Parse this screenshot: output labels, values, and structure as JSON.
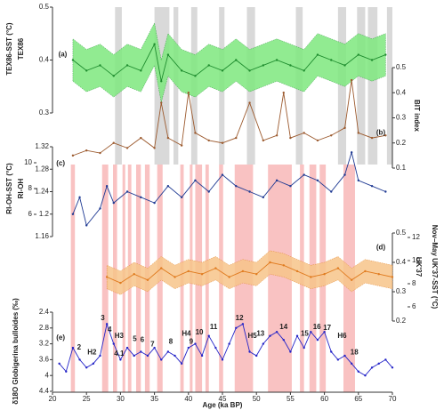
{
  "chart_data": {
    "type": "stacked-line",
    "xlabel": "Age (ka BP)",
    "xlim": [
      20,
      70
    ],
    "xticks": [
      20,
      25,
      30,
      35,
      40,
      45,
      50,
      55,
      60,
      65,
      70
    ],
    "gray_bands": [
      [
        29.2,
        30.2
      ],
      [
        35,
        37.2
      ],
      [
        37.8,
        38.5
      ],
      [
        40.4,
        41.3
      ],
      [
        44.5,
        45.3
      ],
      [
        48.6,
        49.8
      ],
      [
        55.8,
        56.8
      ],
      [
        62,
        63.2
      ],
      [
        64.8,
        66
      ],
      [
        66.4,
        67.8
      ],
      [
        69.2,
        70
      ]
    ],
    "gray_color": "#d9d9d9",
    "pink_bands": [
      [
        22.7,
        23.3
      ],
      [
        27.3,
        28.2
      ],
      [
        28.9,
        29.5
      ],
      [
        30.3,
        30.7
      ],
      [
        31.1,
        31.6
      ],
      [
        32.3,
        33
      ],
      [
        33.6,
        34.3
      ],
      [
        35.4,
        36.2
      ],
      [
        38.8,
        39.3
      ],
      [
        40.2,
        40.6
      ],
      [
        41,
        42
      ],
      [
        42.5,
        43
      ],
      [
        44.5,
        45.1
      ],
      [
        46.8,
        49.5
      ],
      [
        51.7,
        55.2
      ],
      [
        56.4,
        57
      ],
      [
        57.8,
        58.8
      ],
      [
        59.3,
        60.2
      ],
      [
        62.8,
        64.5
      ]
    ],
    "pink_color": "#f9c2c2",
    "panels": [
      {
        "ylabel": "TEX86",
        "ylabel2": "TEX86-SST (°C)",
        "side": "left",
        "ylim": [
          0.3,
          0.5
        ],
        "yticks": [
          0.3,
          0.4,
          0.5
        ],
        "color": "#1e8c2e",
        "band_color": "#7ee87e",
        "tag": "(a)",
        "tag_x": 21.5,
        "tag_y": 0.41,
        "x": [
          23,
          25,
          27,
          29,
          31,
          33,
          35,
          36,
          37,
          39,
          41,
          43,
          45,
          47,
          49,
          51,
          53,
          55,
          57,
          59,
          61,
          63,
          65,
          67,
          69
        ],
        "values": [
          0.4,
          0.38,
          0.39,
          0.37,
          0.39,
          0.38,
          0.43,
          0.36,
          0.41,
          0.38,
          0.37,
          0.39,
          0.38,
          0.4,
          0.38,
          0.39,
          0.4,
          0.39,
          0.38,
          0.41,
          0.4,
          0.39,
          0.41,
          0.4,
          0.41
        ],
        "lower": [
          0.36,
          0.34,
          0.35,
          0.33,
          0.35,
          0.34,
          0.39,
          0.32,
          0.37,
          0.34,
          0.33,
          0.35,
          0.34,
          0.36,
          0.34,
          0.35,
          0.36,
          0.35,
          0.34,
          0.37,
          0.36,
          0.35,
          0.37,
          0.36,
          0.37
        ],
        "upper": [
          0.44,
          0.42,
          0.43,
          0.41,
          0.43,
          0.42,
          0.47,
          0.4,
          0.45,
          0.42,
          0.41,
          0.43,
          0.42,
          0.44,
          0.42,
          0.43,
          0.44,
          0.43,
          0.42,
          0.45,
          0.44,
          0.43,
          0.45,
          0.44,
          0.45
        ]
      },
      {
        "ylabel": "BIT index",
        "side": "right",
        "ylim": [
          0.1,
          0.5
        ],
        "yticks": [
          0.1,
          0.2,
          0.3,
          0.4,
          0.5
        ],
        "color": "#9c5a2e",
        "tag": "(b)",
        "tag_x": 68.3,
        "tag_y": 0.24,
        "x": [
          23,
          25,
          27,
          29,
          31,
          33,
          35,
          36,
          37,
          39,
          40,
          41,
          43,
          45,
          47,
          49,
          51,
          53,
          54,
          55,
          57,
          59,
          61,
          63,
          64,
          65,
          67,
          69
        ],
        "values": [
          0.15,
          0.17,
          0.16,
          0.2,
          0.18,
          0.22,
          0.18,
          0.36,
          0.22,
          0.19,
          0.4,
          0.24,
          0.21,
          0.2,
          0.22,
          0.36,
          0.21,
          0.23,
          0.4,
          0.22,
          0.24,
          0.21,
          0.23,
          0.26,
          0.45,
          0.24,
          0.22,
          0.23
        ]
      },
      {
        "ylabel": "RI-OH",
        "ylabel2": "RI-OH-SST (°C)",
        "side": "left",
        "ylim": [
          1.16,
          1.32
        ],
        "yticks": [
          1.16,
          1.2,
          1.24,
          1.28,
          1.32
        ],
        "y2lim": [
          4,
          12
        ],
        "y2ticks": [
          6,
          8,
          10
        ],
        "color": "#1f3a93",
        "tag": "(c)",
        "tag_x": 21.2,
        "tag_y": 1.29,
        "x": [
          23,
          24,
          25,
          27,
          28,
          29,
          31,
          33,
          35,
          37,
          39,
          41,
          43,
          45,
          47,
          49,
          51,
          53,
          55,
          57,
          59,
          61,
          63,
          64,
          65,
          67,
          69
        ],
        "values": [
          1.2,
          1.23,
          1.18,
          1.21,
          1.25,
          1.22,
          1.24,
          1.23,
          1.22,
          1.25,
          1.23,
          1.26,
          1.24,
          1.27,
          1.25,
          1.24,
          1.23,
          1.26,
          1.25,
          1.27,
          1.26,
          1.24,
          1.27,
          1.31,
          1.26,
          1.25,
          1.24
        ]
      },
      {
        "ylabel": "UK'37",
        "ylabel2": "Nov–May UK'37-SST (°C)",
        "side": "right",
        "ylim": [
          0.2,
          0.5
        ],
        "yticks": [
          0.2,
          0.3,
          0.4,
          0.5
        ],
        "y2lim": [
          4,
          14
        ],
        "y2ticks": [
          6,
          8,
          10,
          12
        ],
        "color": "#e07b1f",
        "band_color": "#f7c48a",
        "tag": "(d)",
        "tag_x": 68.3,
        "tag_y": 0.45,
        "x": [
          28,
          30,
          32,
          34,
          36,
          38,
          40,
          42,
          44,
          46,
          48,
          50,
          52,
          54,
          56,
          58,
          60,
          62,
          64,
          66,
          68,
          70
        ],
        "values": [
          0.35,
          0.33,
          0.36,
          0.34,
          0.38,
          0.35,
          0.37,
          0.36,
          0.38,
          0.35,
          0.37,
          0.36,
          0.4,
          0.39,
          0.37,
          0.35,
          0.36,
          0.38,
          0.34,
          0.37,
          0.36,
          0.35
        ],
        "lower": [
          0.31,
          0.29,
          0.32,
          0.3,
          0.34,
          0.31,
          0.33,
          0.32,
          0.34,
          0.31,
          0.33,
          0.32,
          0.36,
          0.35,
          0.33,
          0.31,
          0.32,
          0.34,
          0.3,
          0.33,
          0.32,
          0.31
        ],
        "upper": [
          0.39,
          0.37,
          0.4,
          0.38,
          0.42,
          0.39,
          0.41,
          0.4,
          0.42,
          0.39,
          0.41,
          0.4,
          0.44,
          0.43,
          0.41,
          0.39,
          0.4,
          0.42,
          0.38,
          0.41,
          0.4,
          0.39
        ]
      },
      {
        "ylabel": "δ18O Globigerina bulloides (‰)",
        "side": "left",
        "ylim": [
          2.4,
          4.4
        ],
        "yticks": [
          2.4,
          2.8,
          3.2,
          3.6,
          4,
          4.4
        ],
        "y_inverted": true,
        "color": "#2424c8",
        "tag": "(e)",
        "tag_x": 21.2,
        "tag_y": 3.05,
        "x": [
          21,
          22,
          23,
          24,
          25,
          26,
          27,
          28,
          29,
          30,
          31,
          32,
          33,
          34,
          35,
          36,
          37,
          38,
          39,
          40,
          41,
          42,
          43,
          44,
          45,
          46,
          47,
          48,
          49,
          50,
          51,
          52,
          53,
          54,
          55,
          56,
          57,
          58,
          59,
          60,
          61,
          62,
          63,
          64,
          65,
          66,
          67,
          68,
          69,
          70
        ],
        "values": [
          3.7,
          3.9,
          3.3,
          3.6,
          3.8,
          3.7,
          3.5,
          2.7,
          3.2,
          3.6,
          3.3,
          3.5,
          3.4,
          3.5,
          3.3,
          3.6,
          3.4,
          3.5,
          3.7,
          3.3,
          3.2,
          3.5,
          3.0,
          3.3,
          3.6,
          3.2,
          2.8,
          2.7,
          3.4,
          3.5,
          3.2,
          3.0,
          2.9,
          3.1,
          3.4,
          3.0,
          3.3,
          2.9,
          3.1,
          2.9,
          3.4,
          3.6,
          3.5,
          3.7,
          3.9,
          4.0,
          3.8,
          3.7,
          3.6,
          3.8
        ]
      }
    ],
    "events": [
      {
        "label": "2",
        "x": 23.9,
        "y": 3.3,
        "color": "#cc1111"
      },
      {
        "label": "H2",
        "x": 25.8,
        "y": 3.42,
        "color": "#1f1f9a"
      },
      {
        "label": "3",
        "x": 27.4,
        "y": 2.55,
        "color": "#cc1111"
      },
      {
        "label": "4",
        "x": 28.4,
        "y": 2.85,
        "color": "#cc1111"
      },
      {
        "label": "H3",
        "x": 29.8,
        "y": 3.0,
        "color": "#1f1f9a"
      },
      {
        "label": "4.1",
        "x": 29.8,
        "y": 3.45,
        "color": "#cc1111"
      },
      {
        "label": "5",
        "x": 32.1,
        "y": 3.08,
        "color": "#cc1111"
      },
      {
        "label": "6",
        "x": 33.2,
        "y": 3.1,
        "color": "#cc1111"
      },
      {
        "label": "7",
        "x": 34.7,
        "y": 3.22,
        "color": "#cc1111"
      },
      {
        "label": "8",
        "x": 37.4,
        "y": 3.15,
        "color": "#cc1111"
      },
      {
        "label": "H4",
        "x": 39.7,
        "y": 2.95,
        "color": "#1f1f9a"
      },
      {
        "label": "9",
        "x": 40.4,
        "y": 3.15,
        "color": "#cc1111"
      },
      {
        "label": "10",
        "x": 41.6,
        "y": 2.92,
        "color": "#cc1111"
      },
      {
        "label": "11",
        "x": 43.7,
        "y": 2.78,
        "color": "#cc1111"
      },
      {
        "label": "12",
        "x": 47.5,
        "y": 2.55,
        "color": "#cc1111"
      },
      {
        "label": "H5",
        "x": 49.4,
        "y": 3.0,
        "color": "#1f1f9a"
      },
      {
        "label": "13",
        "x": 50.6,
        "y": 2.95,
        "color": "#cc1111"
      },
      {
        "label": "14",
        "x": 54.0,
        "y": 2.78,
        "color": "#cc1111"
      },
      {
        "label": "15",
        "x": 57.1,
        "y": 2.95,
        "color": "#cc1111"
      },
      {
        "label": "16",
        "x": 58.9,
        "y": 2.78,
        "color": "#cc1111"
      },
      {
        "label": "17",
        "x": 60.4,
        "y": 2.8,
        "color": "#cc1111"
      },
      {
        "label": "H6",
        "x": 62.6,
        "y": 3.0,
        "color": "#1f1f9a"
      },
      {
        "label": "18",
        "x": 64.4,
        "y": 3.42,
        "color": "#cc1111"
      }
    ]
  }
}
